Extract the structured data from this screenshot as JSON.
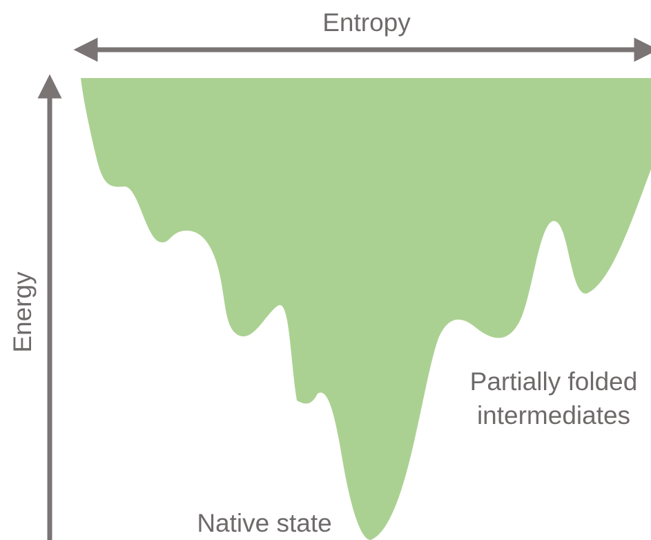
{
  "axes": {
    "x_label": "Entropy",
    "y_label": "Energy"
  },
  "annotations": {
    "intermediates": [
      "Partially folded",
      "intermediates"
    ],
    "native": "Native state"
  }
}
